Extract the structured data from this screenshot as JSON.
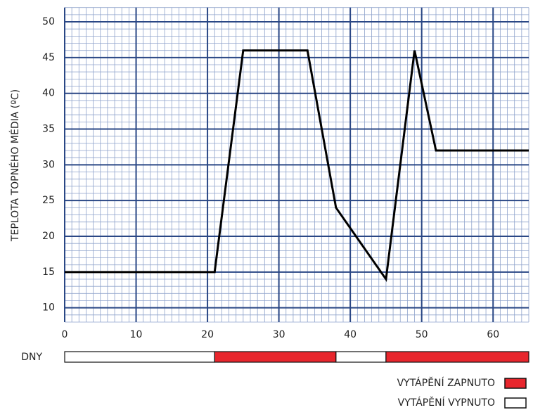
{
  "chart_data": {
    "type": "line",
    "ylabel": "TEPLOTA TOPNÉHO MÉDIA (ºC)",
    "x": [
      0,
      21,
      25,
      34,
      38,
      45,
      49,
      52,
      65
    ],
    "series": [
      {
        "color": "#000000",
        "values": [
          15,
          15,
          46,
          46,
          24,
          14,
          46,
          32,
          32
        ]
      }
    ],
    "xlim": [
      0,
      65
    ],
    "xticks": [
      0,
      10,
      20,
      30,
      40,
      50,
      60
    ],
    "ylim": [
      8,
      52
    ],
    "yticks": [
      10,
      15,
      20,
      25,
      30,
      35,
      40,
      45,
      50
    ],
    "grid": true,
    "timeline": {
      "label": "DNY",
      "segments": [
        {
          "start": 0,
          "end": 21,
          "on": false
        },
        {
          "start": 21,
          "end": 38,
          "on": true
        },
        {
          "start": 38,
          "end": 45,
          "on": false
        },
        {
          "start": 45,
          "end": 65,
          "on": true
        }
      ]
    },
    "legend": {
      "on": {
        "label": "VYTÁPĚNÍ ZAPNUTO",
        "color": "#e8262d"
      },
      "off": {
        "label": "VYTÁPĚNÍ VYPNUTO",
        "color": "#ffffff"
      }
    }
  }
}
